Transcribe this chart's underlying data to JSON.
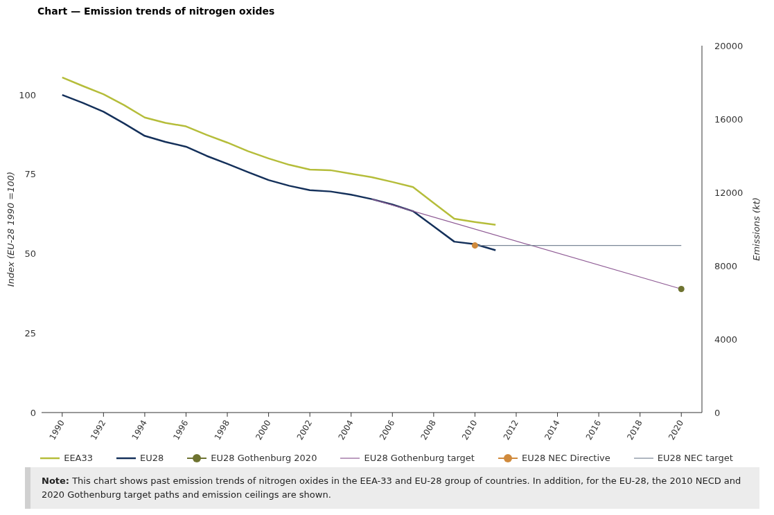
{
  "chart_data": {
    "type": "line",
    "title": "Chart — Emission trends of nitrogen oxides",
    "ylabel": "Index (EU-28 1990 =100)",
    "y2label": "Emissions (kt)",
    "xlim": [
      1989,
      2021
    ],
    "xticks": [
      1990,
      1992,
      1994,
      1996,
      1998,
      2000,
      2002,
      2004,
      2006,
      2008,
      2010,
      2012,
      2014,
      2016,
      2018,
      2020
    ],
    "ylim": [
      0,
      115.5
    ],
    "yticks": [
      0,
      25,
      50,
      75,
      100
    ],
    "y2lim": [
      0,
      20000
    ],
    "y2ticks": [
      0,
      4000,
      8000,
      12000,
      16000,
      20000
    ],
    "grid": false,
    "legend": "bottom",
    "line_style": "solid",
    "series": [
      {
        "name": "EEA33",
        "type": "line",
        "color": "#b5bd3a",
        "x": [
          1990,
          1991,
          1992,
          1993,
          1994,
          1995,
          1996,
          1997,
          1998,
          1999,
          2000,
          2001,
          2002,
          2003,
          2004,
          2005,
          2006,
          2007,
          2008,
          2009,
          2010,
          2011
        ],
        "values": [
          105.5,
          102.8,
          100.2,
          96.8,
          92.9,
          91.2,
          90.1,
          87.4,
          85.0,
          82.3,
          80.0,
          78.0,
          76.5,
          76.3,
          75.2,
          74.1,
          72.6,
          71.0,
          66.0,
          61.0,
          60.0,
          59.1
        ]
      },
      {
        "name": "EU28",
        "type": "line",
        "color": "#14305a",
        "x": [
          1990,
          1991,
          1992,
          1993,
          1994,
          1995,
          1996,
          1997,
          1998,
          1999,
          2000,
          2001,
          2002,
          2003,
          2004,
          2005,
          2006,
          2007,
          2008,
          2009,
          2010,
          2011
        ],
        "values": [
          100.0,
          97.5,
          94.7,
          91.0,
          87.1,
          85.2,
          83.7,
          80.8,
          78.3,
          75.7,
          73.2,
          71.4,
          70.0,
          69.6,
          68.6,
          67.2,
          65.5,
          63.4,
          58.6,
          53.8,
          53.0,
          51.1
        ]
      },
      {
        "name": "EU28 Gothenburg 2020",
        "type": "scatter",
        "marker": "circle",
        "color": "#6e7330",
        "x": [
          2020
        ],
        "values": [
          38.9
        ]
      },
      {
        "name": "EU28 Gothenburg target",
        "type": "line",
        "color": "#8e5a94",
        "x": [
          2005,
          2020
        ],
        "values": [
          67.2,
          38.9
        ]
      },
      {
        "name": "EU28 NEC Directive",
        "type": "scatter",
        "marker": "circle",
        "color": "#d08a3c",
        "x": [
          2010
        ],
        "values": [
          52.6
        ]
      },
      {
        "name": "EU28 NEC target",
        "type": "line",
        "color": "#7a8696",
        "x": [
          2010,
          2020
        ],
        "values": [
          52.6,
          52.6
        ]
      }
    ],
    "annotations": [
      "Note: This chart shows past emission trends of nitrogen oxides in the EEA-33 and EU-28 group of countries. In addition, for the EU-28, the 2010 NECD and 2020 Gothenburg target paths and emission ceilings are shown."
    ]
  }
}
